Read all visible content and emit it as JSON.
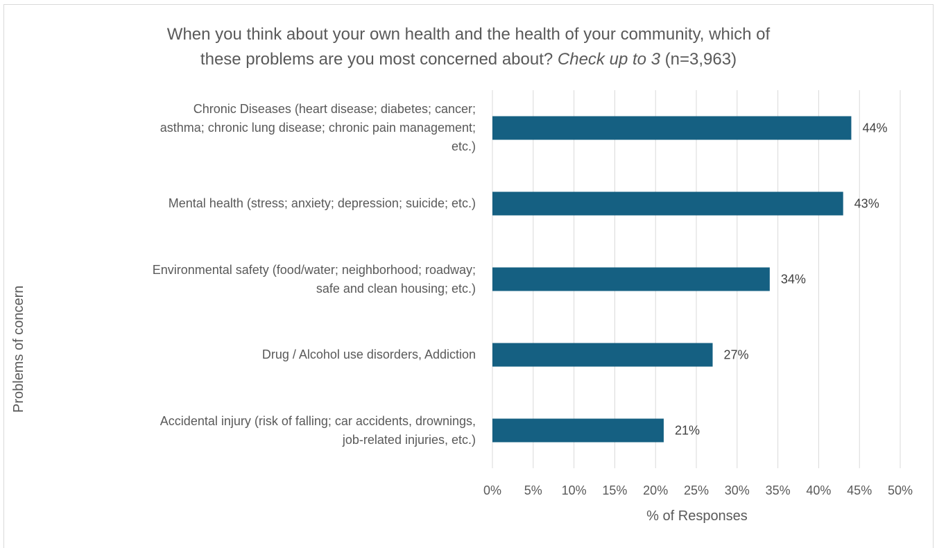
{
  "chart_data": {
    "type": "bar",
    "orientation": "horizontal",
    "title": {
      "main": "When you think about your own health and the health of your community, which of",
      "line2_pre": "these problems are you most concerned about?",
      "line2_em": "Check up to 3",
      "line2_post": "(n=3,963)"
    },
    "categories": [
      [
        "Chronic Diseases (heart disease; diabetes; cancer;",
        "asthma; chronic lung disease; chronic pain management;",
        "etc.)"
      ],
      [
        "Mental health (stress; anxiety; depression; suicide; etc.)"
      ],
      [
        "Environmental safety (food/water; neighborhood; roadway;",
        "safe and clean housing; etc.)"
      ],
      [
        "Drug / Alcohol use disorders, Addiction"
      ],
      [
        "Accidental injury (risk of falling; car accidents, drownings,",
        "job-related injuries, etc.)"
      ]
    ],
    "values": [
      44,
      43,
      34,
      27,
      21
    ],
    "data_labels": [
      "44%",
      "43%",
      "34%",
      "27%",
      "21%"
    ],
    "xlim": [
      0,
      50
    ],
    "xticks": [
      "0%",
      "5%",
      "10%",
      "15%",
      "20%",
      "25%",
      "30%",
      "35%",
      "40%",
      "45%",
      "50%"
    ],
    "xlabel": "% of Responses",
    "ylabel": "Problems of concern",
    "grid": "vertical",
    "legend": "none",
    "bar_color": "#156082",
    "grid_color": "#d9d9d9"
  }
}
